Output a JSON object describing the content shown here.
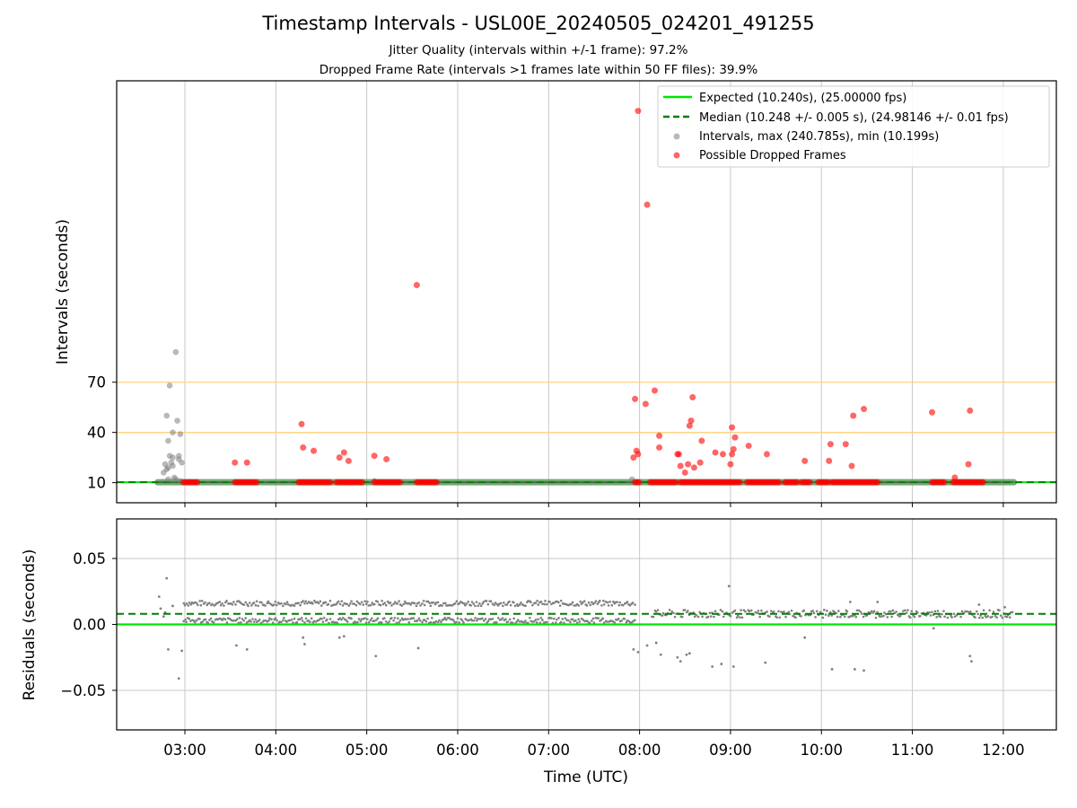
{
  "header": {
    "title": "Timestamp Intervals - USL00E_20240505_024201_491255",
    "subtitle1": "Jitter Quality (intervals within +/-1 frame): 97.2%",
    "subtitle2": "Dropped Frame Rate (intervals >1 frames late within 50 FF files): 39.9%"
  },
  "colors": {
    "expected": "#00e600",
    "median": "#008000",
    "intervals": "#808080",
    "dropped": "#ff0000",
    "threshold": "#ffd27f",
    "grid": "#c8c8c8"
  },
  "chart_data": [
    {
      "type": "scatter",
      "panel": "intervals",
      "ylabel": "Intervals (seconds)",
      "xlim": [
        "02:15",
        "12:35"
      ],
      "ylim": [
        -2,
        250
      ],
      "yticks": [
        10,
        40,
        70
      ],
      "threshold_lines": [
        40,
        70
      ],
      "legend_position": "upper right",
      "legend": [
        "Expected (10.240s), (25.00000 fps)",
        "Median (10.248 +/- 0.005 s), (24.98146 +/- 0.01 fps)",
        "Intervals, max (240.785s), min (10.199s)",
        "Possible Dropped Frames"
      ],
      "expected": 10.24,
      "median": 10.248,
      "intervals_baseline": {
        "from": "02:42",
        "to": "12:07",
        "value": 10.24
      },
      "intervals_outliers": [
        [
          "02:48",
          50
        ],
        [
          "02:50",
          68
        ],
        [
          "02:49",
          35
        ],
        [
          "02:52",
          40
        ],
        [
          "02:54",
          88
        ],
        [
          "02:55",
          47
        ],
        [
          "02:57",
          39
        ],
        [
          "02:50",
          26
        ],
        [
          "02:52",
          25
        ],
        [
          "02:56",
          26
        ],
        [
          "02:56",
          24
        ],
        [
          "02:58",
          22
        ],
        [
          "02:47",
          21
        ],
        [
          "02:49",
          19
        ],
        [
          "02:51",
          22
        ],
        [
          "02:48",
          18
        ],
        [
          "02:52",
          20
        ],
        [
          "02:54",
          12
        ],
        [
          "02:57",
          11
        ],
        [
          "02:46",
          16
        ],
        [
          "02:49",
          12
        ],
        [
          "02:53",
          13
        ],
        [
          "07:55",
          12
        ],
        [
          "05:05",
          11
        ]
      ],
      "dropped_bands": [
        [
          "02:59",
          "03:09"
        ],
        [
          "03:33",
          "03:48"
        ],
        [
          "04:15",
          "04:37"
        ],
        [
          "04:40",
          "04:58"
        ],
        [
          "05:05",
          "05:23"
        ],
        [
          "05:33",
          "05:47"
        ],
        [
          "07:57",
          "08:00"
        ],
        [
          "08:07",
          "08:25"
        ],
        [
          "08:27",
          "09:07"
        ],
        [
          "09:11",
          "09:33"
        ],
        [
          "09:36",
          "09:44"
        ],
        [
          "09:47",
          "09:53"
        ],
        [
          "09:58",
          "10:05"
        ],
        [
          "10:07",
          "10:38"
        ],
        [
          "11:13",
          "11:22"
        ],
        [
          "11:27",
          "11:47"
        ]
      ],
      "dropped_points": [
        [
          "03:33",
          22
        ],
        [
          "03:41",
          22
        ],
        [
          "04:17",
          45
        ],
        [
          "04:18",
          31
        ],
        [
          "04:25",
          29
        ],
        [
          "04:42",
          25
        ],
        [
          "04:45",
          28
        ],
        [
          "04:48",
          23
        ],
        [
          "05:05",
          26
        ],
        [
          "05:13",
          24
        ],
        [
          "05:33",
          128
        ],
        [
          "07:57",
          60
        ],
        [
          "07:58",
          29
        ],
        [
          "07:59",
          27
        ],
        [
          "07:56",
          25
        ],
        [
          "07:59",
          232
        ],
        [
          "08:04",
          57
        ],
        [
          "08:05",
          176
        ],
        [
          "08:10",
          65
        ],
        [
          "08:13",
          38
        ],
        [
          "08:13",
          31
        ],
        [
          "08:25",
          27
        ],
        [
          "08:26",
          27
        ],
        [
          "08:27",
          20
        ],
        [
          "08:30",
          16
        ],
        [
          "08:32",
          21
        ],
        [
          "08:33",
          44
        ],
        [
          "08:34",
          47
        ],
        [
          "08:35",
          61
        ],
        [
          "08:36",
          19
        ],
        [
          "08:40",
          22
        ],
        [
          "08:41",
          35
        ],
        [
          "08:50",
          28
        ],
        [
          "08:55",
          27
        ],
        [
          "09:00",
          21
        ],
        [
          "09:01",
          27
        ],
        [
          "09:01",
          43
        ],
        [
          "09:02",
          30
        ],
        [
          "09:03",
          37
        ],
        [
          "09:12",
          32
        ],
        [
          "09:24",
          27
        ],
        [
          "09:49",
          23
        ],
        [
          "10:05",
          23
        ],
        [
          "10:06",
          33
        ],
        [
          "10:16",
          33
        ],
        [
          "10:20",
          20
        ],
        [
          "10:21",
          50
        ],
        [
          "10:28",
          54
        ],
        [
          "11:13",
          52
        ],
        [
          "11:37",
          21
        ],
        [
          "11:38",
          53
        ],
        [
          "11:28",
          13
        ]
      ]
    },
    {
      "type": "scatter",
      "panel": "residuals",
      "xlabel": "Time (UTC)",
      "ylabel": "Residuals (seconds)",
      "ylim": [
        -0.08,
        0.08
      ],
      "yticks": [
        0.05,
        0.0,
        -0.05
      ],
      "ytick_labels": [
        "0.05",
        "0.00",
        "−0.05"
      ],
      "xticks": [
        "03:00",
        "04:00",
        "05:00",
        "06:00",
        "07:00",
        "08:00",
        "09:00",
        "10:00",
        "11:00",
        "12:00"
      ],
      "expected_residual": 0.0,
      "median_residual": 0.008,
      "dense_segments": [
        {
          "from": "02:59",
          "to": "07:57",
          "levels": [
            0.016,
            0.003
          ],
          "spread": 0.002
        },
        {
          "from": "08:08",
          "to": "12:06",
          "levels": [
            0.008
          ],
          "spread": 0.003
        }
      ],
      "outliers": [
        [
          "02:43",
          0.021
        ],
        [
          "02:44",
          0.012
        ],
        [
          "02:46",
          0.006
        ],
        [
          "02:47",
          0.009
        ],
        [
          "02:48",
          0.035
        ],
        [
          "02:49",
          -0.019
        ],
        [
          "02:52",
          0.014
        ],
        [
          "02:56",
          -0.041
        ],
        [
          "02:58",
          -0.02
        ],
        [
          "03:34",
          -0.016
        ],
        [
          "03:41",
          -0.019
        ],
        [
          "04:18",
          -0.01
        ],
        [
          "04:19",
          -0.015
        ],
        [
          "04:42",
          -0.01
        ],
        [
          "04:45",
          -0.009
        ],
        [
          "05:06",
          -0.024
        ],
        [
          "05:34",
          -0.018
        ],
        [
          "07:56",
          -0.019
        ],
        [
          "07:59",
          -0.021
        ],
        [
          "08:05",
          -0.016
        ],
        [
          "08:11",
          -0.014
        ],
        [
          "08:14",
          -0.023
        ],
        [
          "08:25",
          -0.025
        ],
        [
          "08:27",
          -0.028
        ],
        [
          "08:31",
          -0.023
        ],
        [
          "08:33",
          -0.022
        ],
        [
          "08:48",
          -0.032
        ],
        [
          "08:54",
          -0.03
        ],
        [
          "08:59",
          0.029
        ],
        [
          "09:02",
          -0.032
        ],
        [
          "09:23",
          -0.029
        ],
        [
          "09:49",
          -0.01
        ],
        [
          "10:07",
          -0.034
        ],
        [
          "10:22",
          -0.034
        ],
        [
          "10:28",
          -0.035
        ],
        [
          "10:19",
          0.017
        ],
        [
          "10:37",
          0.017
        ],
        [
          "11:14",
          -0.003
        ],
        [
          "11:38",
          -0.024
        ],
        [
          "11:39",
          -0.028
        ],
        [
          "11:44",
          0.015
        ],
        [
          "12:01",
          0.013
        ]
      ]
    }
  ]
}
